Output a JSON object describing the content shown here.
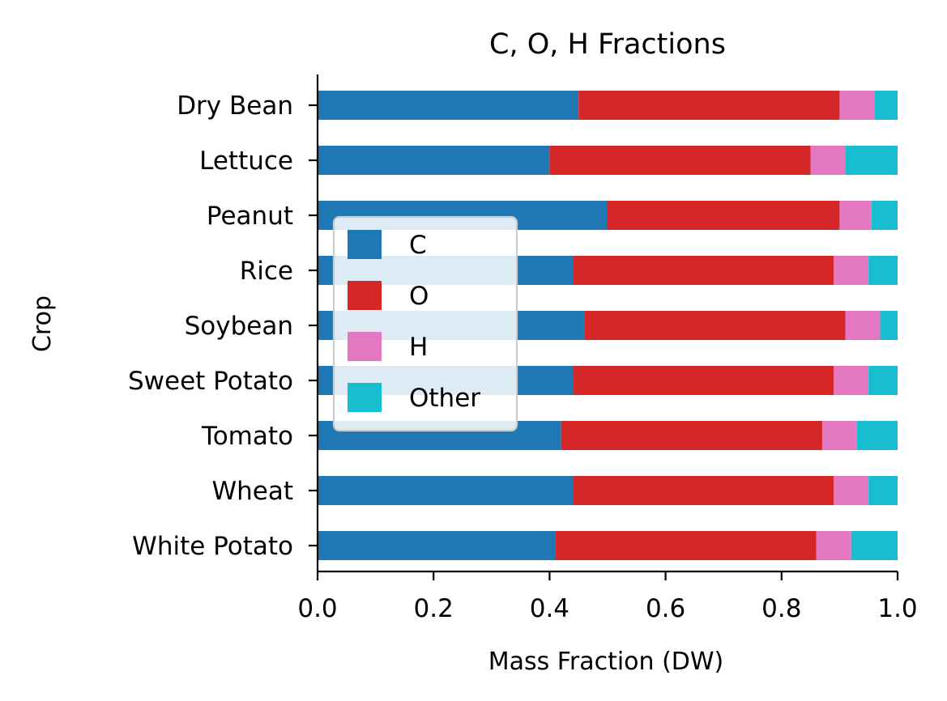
{
  "chart_data": {
    "type": "bar",
    "orientation": "horizontal",
    "stacked": true,
    "title": "C, O, H Fractions",
    "xlabel": "Mass Fraction (DW)",
    "ylabel": "Crop",
    "xlim": [
      0,
      1
    ],
    "xticks": [
      0.0,
      0.2,
      0.4,
      0.6,
      0.8,
      1.0
    ],
    "xtick_labels": [
      "0.0",
      "0.2",
      "0.4",
      "0.6",
      "0.8",
      "1.0"
    ],
    "categories": [
      "Dry Bean",
      "Lettuce",
      "Peanut",
      "Rice",
      "Soybean",
      "Sweet Potato",
      "Tomato",
      "Wheat",
      "White Potato"
    ],
    "series": [
      {
        "name": "C",
        "color": "#1f77b4",
        "values": [
          0.45,
          0.4,
          0.5,
          0.44,
          0.46,
          0.44,
          0.42,
          0.44,
          0.41
        ]
      },
      {
        "name": "O",
        "color": "#d62728",
        "values": [
          0.45,
          0.45,
          0.4,
          0.45,
          0.45,
          0.45,
          0.45,
          0.45,
          0.45
        ]
      },
      {
        "name": "H",
        "color": "#e377c2",
        "values": [
          0.06,
          0.06,
          0.055,
          0.06,
          0.06,
          0.06,
          0.06,
          0.06,
          0.06
        ]
      },
      {
        "name": "Other",
        "color": "#17becf",
        "values": [
          0.04,
          0.09,
          0.045,
          0.05,
          0.03,
          0.05,
          0.07,
          0.05,
          0.08
        ]
      }
    ],
    "legend": {
      "placement": "center-left",
      "entries": [
        "C",
        "O",
        "H",
        "Other"
      ]
    },
    "grid": false
  }
}
